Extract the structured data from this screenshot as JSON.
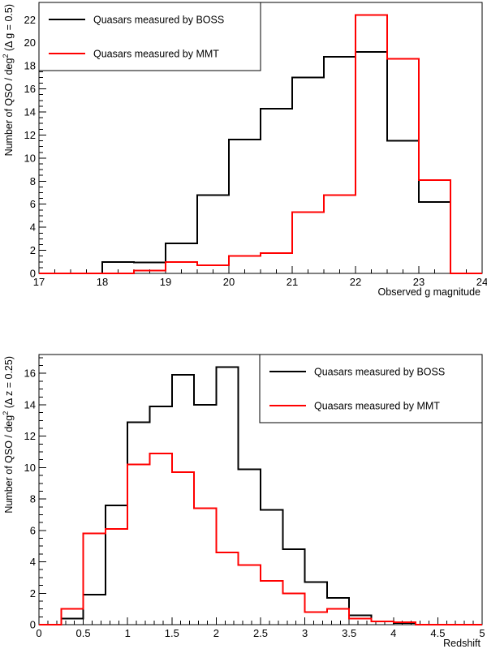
{
  "chart_data": [
    {
      "type": "histogram",
      "xlabel": "Observed g magnitude",
      "ylabel": "Number of QSO / deg",
      "ylabel_sup": "2",
      "ylabel_tail": " (Δ g = 0.5)",
      "xlim": [
        17,
        24
      ],
      "ylim": [
        0,
        23.5
      ],
      "x_ticks": [
        17,
        18,
        19,
        20,
        21,
        22,
        23,
        24
      ],
      "y_ticks": [
        0,
        2,
        4,
        6,
        8,
        10,
        12,
        14,
        16,
        18,
        20,
        22
      ],
      "x_minor_step": 0.25,
      "y_minor_step": 0.5,
      "bin_edges": [
        17,
        17.5,
        18,
        18.5,
        19,
        19.5,
        20,
        20.5,
        21,
        21.5,
        22,
        22.5,
        23,
        23.5,
        24
      ],
      "legend_position": "top-left",
      "series": [
        {
          "name": "Quasars measured by BOSS",
          "color": "#000000",
          "values": [
            0,
            0,
            1.0,
            0.95,
            2.6,
            6.8,
            11.6,
            14.3,
            17.0,
            18.8,
            19.2,
            11.5,
            6.2,
            0
          ]
        },
        {
          "name": "Quasars measured by MMT",
          "color": "#ff0000",
          "values": [
            0,
            0,
            0,
            0.25,
            1.0,
            0.7,
            1.5,
            1.75,
            5.3,
            6.8,
            22.4,
            18.6,
            8.1,
            0
          ]
        }
      ]
    },
    {
      "type": "histogram",
      "xlabel": "Redshift",
      "ylabel": "Number of QSO / deg",
      "ylabel_sup": "2",
      "ylabel_tail": " (Δ z = 0.25)",
      "xlim": [
        0,
        5
      ],
      "ylim": [
        0,
        17.2
      ],
      "x_ticks": [
        0,
        0.5,
        1,
        1.5,
        2,
        2.5,
        3,
        3.5,
        4,
        4.5,
        5
      ],
      "y_ticks": [
        0,
        2,
        4,
        6,
        8,
        10,
        12,
        14,
        16
      ],
      "x_minor_step": 0.1,
      "y_minor_step": 0.5,
      "bin_edges": [
        0,
        0.25,
        0.5,
        0.75,
        1,
        1.25,
        1.5,
        1.75,
        2,
        2.25,
        2.5,
        2.75,
        3,
        3.25,
        3.5,
        3.75,
        4,
        4.25,
        4.5,
        4.75,
        5
      ],
      "legend_position": "top-right",
      "series": [
        {
          "name": "Quasars measured by BOSS",
          "color": "#000000",
          "values": [
            0,
            0.4,
            1.9,
            7.6,
            12.9,
            13.9,
            15.9,
            14.0,
            16.4,
            9.9,
            7.3,
            4.8,
            2.7,
            1.7,
            0.6,
            0.2,
            0.1,
            0,
            0,
            0
          ]
        },
        {
          "name": "Quasars measured by MMT",
          "color": "#ff0000",
          "values": [
            0,
            1.0,
            5.8,
            6.1,
            10.2,
            10.9,
            9.7,
            7.4,
            4.6,
            3.8,
            2.8,
            2.0,
            0.8,
            1.0,
            0.4,
            0.2,
            0.15,
            0,
            0,
            0
          ]
        }
      ]
    }
  ]
}
